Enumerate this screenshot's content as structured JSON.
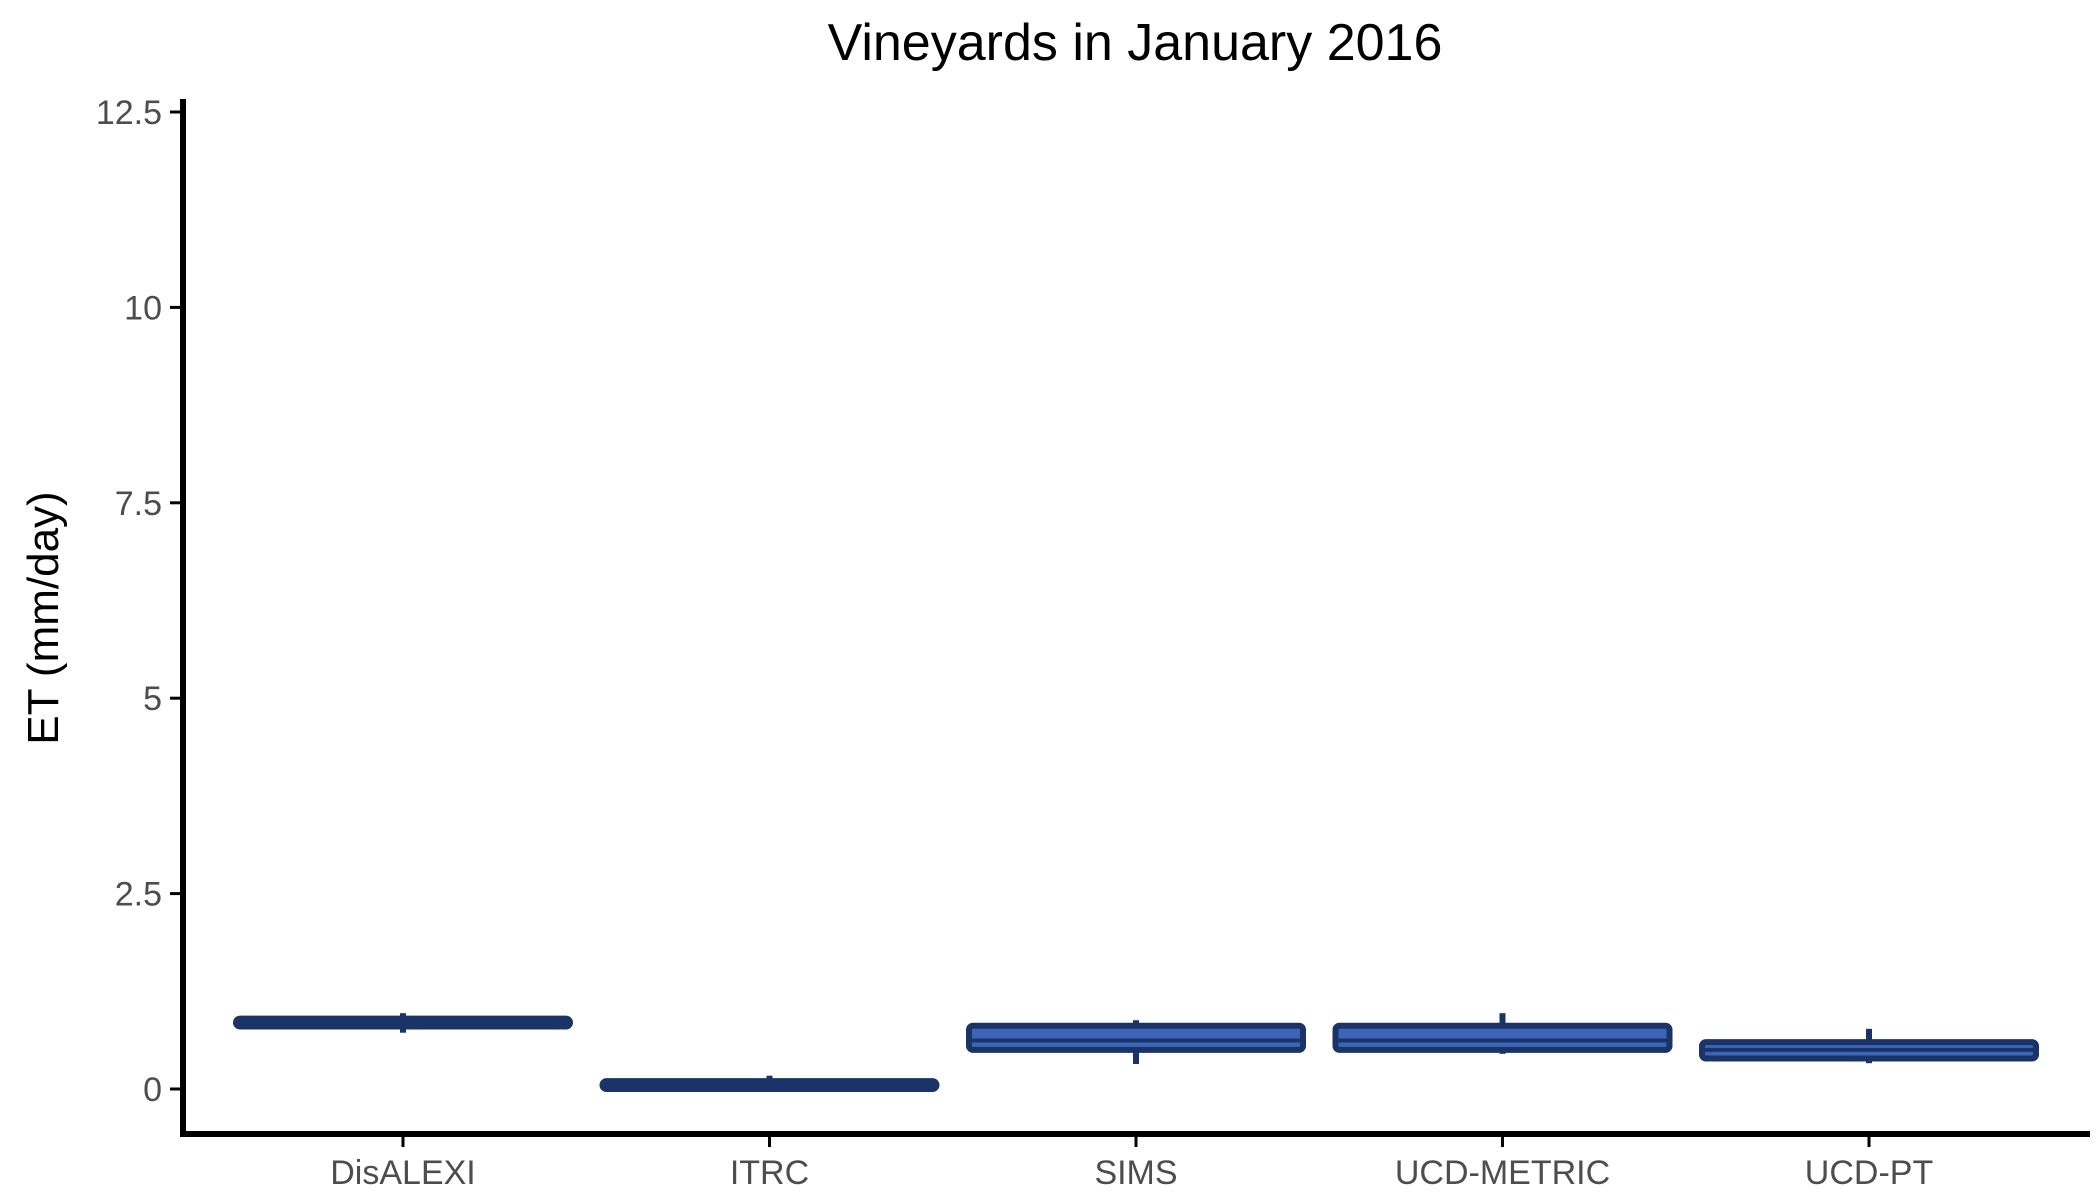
{
  "chart_data": {
    "type": "box",
    "title": "Vineyards in January 2016",
    "xlabel": "",
    "ylabel": "ET (mm/day)",
    "ylim": [
      -0.6,
      12.6
    ],
    "yticks": [
      0,
      2.5,
      5,
      7.5,
      10,
      12.5
    ],
    "ytick_labels": [
      "0",
      "2.5",
      "5",
      "7.5",
      "10",
      "12.5"
    ],
    "categories": [
      "DisALEXI",
      "ITRC",
      "SIMS",
      "UCD-METRIC",
      "UCD-PT"
    ],
    "boxes": [
      {
        "category": "DisALEXI",
        "whisker_low": 0.72,
        "q1": 0.8,
        "median": 0.85,
        "q3": 0.9,
        "whisker_high": 0.97
      },
      {
        "category": "ITRC",
        "whisker_low": 0.0,
        "q1": 0.0,
        "median": 0.04,
        "q3": 0.1,
        "whisker_high": 0.17
      },
      {
        "category": "SIMS",
        "whisker_low": 0.32,
        "q1": 0.5,
        "median": 0.62,
        "q3": 0.81,
        "whisker_high": 0.88
      },
      {
        "category": "UCD-METRIC",
        "whisker_low": 0.45,
        "q1": 0.5,
        "median": 0.62,
        "q3": 0.81,
        "whisker_high": 0.97
      },
      {
        "category": "UCD-PT",
        "whisker_low": 0.33,
        "q1": 0.39,
        "median": 0.5,
        "q3": 0.6,
        "whisker_high": 0.77
      }
    ],
    "grid": false,
    "legend": "none",
    "colors": {
      "box_fill": "#3c64b9",
      "box_stroke": "#1b3468",
      "axis": "#000000",
      "tick_text": "#4d4d4d"
    }
  }
}
